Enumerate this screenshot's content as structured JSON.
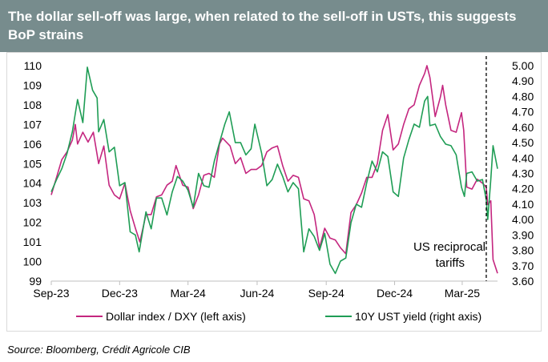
{
  "title": "The dollar sell-off was large, when related to the sell-off in USTs, this suggests BoP strains",
  "source": "Source: Bloomberg, Crédit Agricole CIB",
  "annotation": [
    "US reciprocal",
    "tariffs"
  ],
  "chart_data": {
    "type": "line",
    "x_ticks": [
      "Sep-23",
      "Dec-23",
      "Mar-24",
      "Jun-24",
      "Sep-24",
      "Dec-24",
      "Mar-25"
    ],
    "left_axis": {
      "ylim": [
        99,
        110
      ],
      "ticks": [
        "99",
        "100",
        "101",
        "102",
        "103",
        "104",
        "105",
        "106",
        "107",
        "108",
        "109",
        "110"
      ]
    },
    "right_axis": {
      "ylim": [
        3.6,
        5.0
      ],
      "ticks": [
        "3.60",
        "3.70",
        "3.80",
        "3.90",
        "4.00",
        "4.10",
        "4.20",
        "4.30",
        "4.40",
        "4.50",
        "4.60",
        "4.70",
        "4.80",
        "4.90",
        "5.00"
      ]
    },
    "vline_date": "2025-04-02",
    "legend_position": "bottom",
    "grid": false,
    "series": [
      {
        "name": "Dollar index / DXY (left axis)",
        "axis": "left",
        "color": "#c4267f",
        "points": [
          [
            "2023-09-01",
            103.4
          ],
          [
            "2023-09-08",
            104.3
          ],
          [
            "2023-09-15",
            105.2
          ],
          [
            "2023-09-22",
            105.6
          ],
          [
            "2023-09-29",
            106.2
          ],
          [
            "2023-10-03",
            107.0
          ],
          [
            "2023-10-06",
            106.0
          ],
          [
            "2023-10-13",
            106.6
          ],
          [
            "2023-10-20",
            106.1
          ],
          [
            "2023-10-27",
            106.6
          ],
          [
            "2023-11-03",
            105.0
          ],
          [
            "2023-11-10",
            105.9
          ],
          [
            "2023-11-17",
            103.9
          ],
          [
            "2023-11-24",
            103.4
          ],
          [
            "2023-12-01",
            103.2
          ],
          [
            "2023-12-08",
            104.0
          ],
          [
            "2023-12-15",
            102.6
          ],
          [
            "2023-12-22",
            101.7
          ],
          [
            "2023-12-28",
            101.0
          ],
          [
            "2024-01-05",
            102.4
          ],
          [
            "2024-01-12",
            102.4
          ],
          [
            "2024-01-19",
            103.3
          ],
          [
            "2024-01-26",
            103.4
          ],
          [
            "2024-02-02",
            103.9
          ],
          [
            "2024-02-09",
            104.1
          ],
          [
            "2024-02-14",
            104.9
          ],
          [
            "2024-02-23",
            103.9
          ],
          [
            "2024-03-01",
            103.8
          ],
          [
            "2024-03-08",
            102.7
          ],
          [
            "2024-03-15",
            103.4
          ],
          [
            "2024-03-22",
            104.4
          ],
          [
            "2024-03-29",
            104.5
          ],
          [
            "2024-04-05",
            104.3
          ],
          [
            "2024-04-12",
            106.0
          ],
          [
            "2024-04-16",
            106.3
          ],
          [
            "2024-04-26",
            105.9
          ],
          [
            "2024-05-03",
            105.0
          ],
          [
            "2024-05-10",
            105.3
          ],
          [
            "2024-05-17",
            104.5
          ],
          [
            "2024-05-24",
            104.7
          ],
          [
            "2024-05-31",
            104.7
          ],
          [
            "2024-06-07",
            104.9
          ],
          [
            "2024-06-14",
            105.6
          ],
          [
            "2024-06-21",
            105.8
          ],
          [
            "2024-06-28",
            105.9
          ],
          [
            "2024-07-05",
            104.9
          ],
          [
            "2024-07-12",
            104.1
          ],
          [
            "2024-07-19",
            104.4
          ],
          [
            "2024-07-26",
            104.3
          ],
          [
            "2024-08-02",
            103.2
          ],
          [
            "2024-08-09",
            103.1
          ],
          [
            "2024-08-16",
            102.4
          ],
          [
            "2024-08-23",
            100.7
          ],
          [
            "2024-08-30",
            101.7
          ],
          [
            "2024-09-06",
            101.2
          ],
          [
            "2024-09-13",
            101.1
          ],
          [
            "2024-09-20",
            100.7
          ],
          [
            "2024-09-27",
            100.4
          ],
          [
            "2024-10-04",
            102.5
          ],
          [
            "2024-10-11",
            102.9
          ],
          [
            "2024-10-18",
            103.5
          ],
          [
            "2024-10-25",
            104.3
          ],
          [
            "2024-11-01",
            104.3
          ],
          [
            "2024-11-08",
            105.0
          ],
          [
            "2024-11-15",
            106.7
          ],
          [
            "2024-11-22",
            107.5
          ],
          [
            "2024-11-29",
            105.7
          ],
          [
            "2024-12-06",
            106.0
          ],
          [
            "2024-12-13",
            107.0
          ],
          [
            "2024-12-20",
            107.8
          ],
          [
            "2024-12-27",
            108.0
          ],
          [
            "2025-01-03",
            109.0
          ],
          [
            "2025-01-10",
            109.6
          ],
          [
            "2025-01-13",
            110.0
          ],
          [
            "2025-01-17",
            109.4
          ],
          [
            "2025-01-24",
            107.4
          ],
          [
            "2025-01-31",
            108.4
          ],
          [
            "2025-02-03",
            109.0
          ],
          [
            "2025-02-07",
            108.0
          ],
          [
            "2025-02-14",
            106.7
          ],
          [
            "2025-02-21",
            106.6
          ],
          [
            "2025-02-28",
            107.6
          ],
          [
            "2025-03-03",
            106.7
          ],
          [
            "2025-03-07",
            103.8
          ],
          [
            "2025-03-14",
            103.7
          ],
          [
            "2025-03-21",
            104.2
          ],
          [
            "2025-03-28",
            104.0
          ],
          [
            "2025-04-02",
            103.8
          ],
          [
            "2025-04-04",
            102.9
          ],
          [
            "2025-04-08",
            103.1
          ],
          [
            "2025-04-11",
            100.1
          ],
          [
            "2025-04-17",
            99.4
          ]
        ]
      },
      {
        "name": "10Y UST yield (right axis)",
        "axis": "right",
        "color": "#1f9d55",
        "points": [
          [
            "2023-09-01",
            4.18
          ],
          [
            "2023-09-08",
            4.26
          ],
          [
            "2023-09-15",
            4.33
          ],
          [
            "2023-09-22",
            4.43
          ],
          [
            "2023-09-29",
            4.57
          ],
          [
            "2023-10-06",
            4.78
          ],
          [
            "2023-10-13",
            4.63
          ],
          [
            "2023-10-19",
            4.99
          ],
          [
            "2023-10-26",
            4.84
          ],
          [
            "2023-11-01",
            4.79
          ],
          [
            "2023-11-03",
            4.57
          ],
          [
            "2023-11-10",
            4.65
          ],
          [
            "2023-11-17",
            4.44
          ],
          [
            "2023-11-24",
            4.47
          ],
          [
            "2023-12-01",
            4.22
          ],
          [
            "2023-12-08",
            4.24
          ],
          [
            "2023-12-15",
            3.92
          ],
          [
            "2023-12-22",
            3.9
          ],
          [
            "2023-12-27",
            3.79
          ],
          [
            "2024-01-05",
            4.05
          ],
          [
            "2024-01-12",
            3.94
          ],
          [
            "2024-01-19",
            4.14
          ],
          [
            "2024-01-26",
            4.14
          ],
          [
            "2024-02-02",
            4.03
          ],
          [
            "2024-02-09",
            4.18
          ],
          [
            "2024-02-16",
            4.28
          ],
          [
            "2024-02-23",
            4.25
          ],
          [
            "2024-03-01",
            4.19
          ],
          [
            "2024-03-08",
            4.08
          ],
          [
            "2024-03-15",
            4.3
          ],
          [
            "2024-03-22",
            4.22
          ],
          [
            "2024-03-29",
            4.21
          ],
          [
            "2024-04-05",
            4.38
          ],
          [
            "2024-04-12",
            4.5
          ],
          [
            "2024-04-19",
            4.62
          ],
          [
            "2024-04-25",
            4.7
          ],
          [
            "2024-05-03",
            4.5
          ],
          [
            "2024-05-10",
            4.5
          ],
          [
            "2024-05-17",
            4.42
          ],
          [
            "2024-05-24",
            4.46
          ],
          [
            "2024-05-29",
            4.62
          ],
          [
            "2024-06-07",
            4.43
          ],
          [
            "2024-06-14",
            4.22
          ],
          [
            "2024-06-21",
            4.26
          ],
          [
            "2024-06-28",
            4.36
          ],
          [
            "2024-07-05",
            4.28
          ],
          [
            "2024-07-12",
            4.18
          ],
          [
            "2024-07-19",
            4.24
          ],
          [
            "2024-07-26",
            4.2
          ],
          [
            "2024-08-02",
            3.79
          ],
          [
            "2024-08-09",
            3.94
          ],
          [
            "2024-08-16",
            3.89
          ],
          [
            "2024-08-23",
            3.8
          ],
          [
            "2024-08-30",
            3.91
          ],
          [
            "2024-09-06",
            3.71
          ],
          [
            "2024-09-13",
            3.65
          ],
          [
            "2024-09-20",
            3.73
          ],
          [
            "2024-09-27",
            3.75
          ],
          [
            "2024-10-04",
            3.98
          ],
          [
            "2024-10-11",
            4.1
          ],
          [
            "2024-10-18",
            4.08
          ],
          [
            "2024-10-25",
            4.24
          ],
          [
            "2024-11-01",
            4.38
          ],
          [
            "2024-11-08",
            4.31
          ],
          [
            "2024-11-15",
            4.44
          ],
          [
            "2024-11-22",
            4.41
          ],
          [
            "2024-11-29",
            4.18
          ],
          [
            "2024-12-06",
            4.15
          ],
          [
            "2024-12-13",
            4.4
          ],
          [
            "2024-12-20",
            4.52
          ],
          [
            "2024-12-27",
            4.62
          ],
          [
            "2025-01-03",
            4.6
          ],
          [
            "2025-01-10",
            4.77
          ],
          [
            "2025-01-14",
            4.8
          ],
          [
            "2025-01-17",
            4.61
          ],
          [
            "2025-01-24",
            4.62
          ],
          [
            "2025-01-31",
            4.54
          ],
          [
            "2025-02-07",
            4.49
          ],
          [
            "2025-02-14",
            4.48
          ],
          [
            "2025-02-21",
            4.42
          ],
          [
            "2025-02-28",
            4.21
          ],
          [
            "2025-03-04",
            4.15
          ],
          [
            "2025-03-07",
            4.3
          ],
          [
            "2025-03-14",
            4.31
          ],
          [
            "2025-03-21",
            4.25
          ],
          [
            "2025-03-28",
            4.26
          ],
          [
            "2025-04-02",
            4.13
          ],
          [
            "2025-04-04",
            4.0
          ],
          [
            "2025-04-08",
            4.26
          ],
          [
            "2025-04-11",
            4.48
          ],
          [
            "2025-04-17",
            4.33
          ]
        ]
      }
    ]
  }
}
